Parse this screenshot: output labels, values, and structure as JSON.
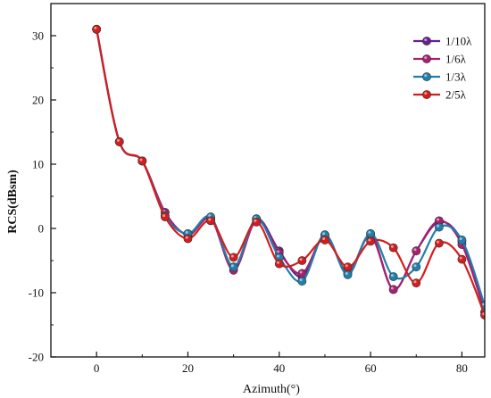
{
  "chart_data": {
    "type": "line",
    "xlabel": "Azimuth(°)",
    "ylabel": "RCS(dBsm)",
    "xlim": [
      -10,
      85
    ],
    "ylim": [
      -20,
      35
    ],
    "xticks": [
      0,
      20,
      40,
      60,
      80
    ],
    "yticks": [
      -20,
      -10,
      0,
      10,
      20,
      30
    ],
    "grid": false,
    "legend_position": "top-right",
    "x": [
      0,
      5,
      10,
      15,
      20,
      25,
      30,
      35,
      40,
      45,
      50,
      55,
      60,
      65,
      70,
      75,
      80,
      85
    ],
    "series": [
      {
        "name": "1/10λ",
        "color": "#6a1f8f",
        "values": [
          31,
          13.5,
          10.5,
          2.5,
          -1.0,
          1.5,
          -6.0,
          1.5,
          -3.5,
          -7.5,
          -1.0,
          -7.0,
          -1.0,
          -9.5,
          -3.5,
          1.0,
          -2.0,
          -13.0
        ]
      },
      {
        "name": "1/6λ",
        "color": "#a8206f",
        "values": [
          31,
          13.5,
          10.5,
          2.5,
          -1.0,
          1.5,
          -6.5,
          1.2,
          -3.8,
          -7.0,
          -1.2,
          -6.8,
          -1.2,
          -9.5,
          -3.5,
          1.2,
          -2.5,
          -13.0
        ]
      },
      {
        "name": "1/3λ",
        "color": "#1f7fad",
        "values": [
          31,
          13.5,
          10.5,
          2.0,
          -0.8,
          1.8,
          -6.0,
          1.5,
          -4.5,
          -8.2,
          -1.0,
          -7.2,
          -0.8,
          -7.5,
          -6.0,
          0.2,
          -1.8,
          -12.0
        ]
      },
      {
        "name": "2/5λ",
        "color": "#d21e1e",
        "values": [
          31,
          13.5,
          10.5,
          1.8,
          -1.6,
          1.2,
          -4.5,
          1.0,
          -5.5,
          -5.0,
          -1.8,
          -6.0,
          -2.0,
          -3.0,
          -8.5,
          -2.3,
          -4.8,
          -13.5
        ]
      }
    ]
  }
}
